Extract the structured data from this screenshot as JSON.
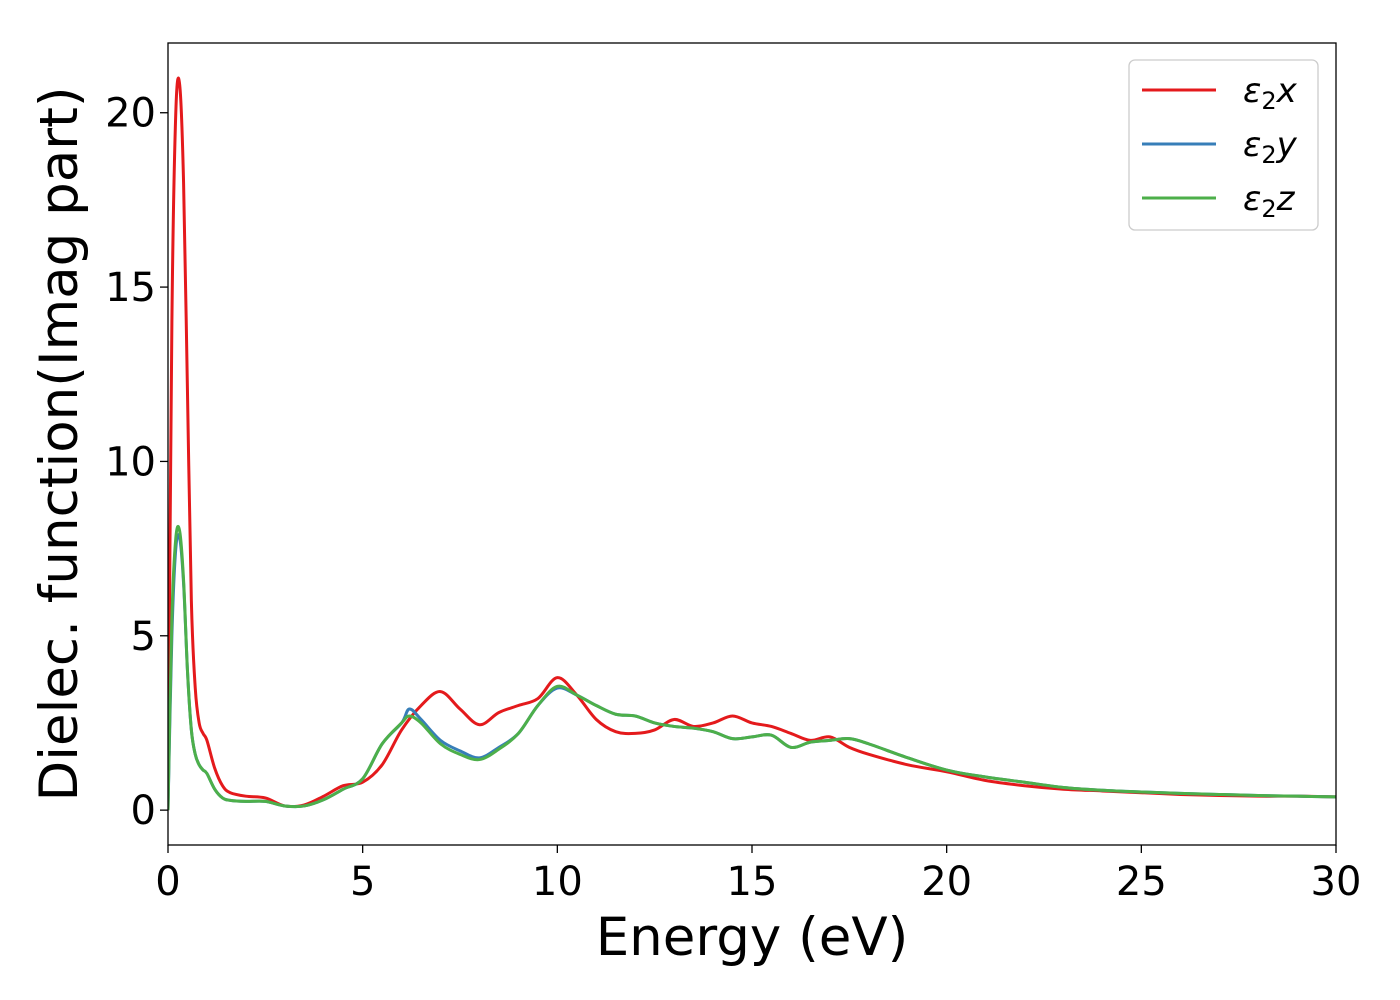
{
  "chart_data": {
    "type": "line",
    "xlabel": "Energy (eV)",
    "ylabel": "Dielec. function(Imag part)",
    "xlim": [
      0,
      30
    ],
    "ylim": [
      -1,
      22
    ],
    "xticks": [
      0,
      5,
      10,
      15,
      20,
      25,
      30
    ],
    "yticks": [
      0,
      5,
      10,
      15,
      20
    ],
    "grid": false,
    "legend_position": "top-right",
    "series": [
      {
        "name": "ε2x",
        "legend": {
          "base": "ε",
          "sub": "2",
          "suffix": "x"
        },
        "color": "#e41a1c",
        "x": [
          0,
          0.1,
          0.2,
          0.3,
          0.4,
          0.5,
          0.6,
          0.7,
          0.8,
          0.9,
          1.0,
          1.2,
          1.4,
          1.6,
          2.0,
          2.5,
          3.0,
          3.5,
          4.0,
          4.5,
          5.0,
          5.5,
          6.0,
          6.5,
          7.0,
          7.5,
          8.0,
          8.5,
          9.0,
          9.5,
          10.0,
          10.5,
          11.0,
          11.5,
          12.0,
          12.5,
          13.0,
          13.5,
          14.0,
          14.5,
          15.0,
          15.5,
          16.0,
          16.5,
          17.0,
          17.5,
          18.0,
          19.0,
          20.0,
          21.0,
          22.0,
          23.0,
          24.0,
          25.0,
          26.0,
          27.0,
          28.0,
          29.0,
          30.0
        ],
        "y": [
          0,
          14.0,
          20.0,
          20.8,
          18.0,
          12.0,
          6.0,
          3.5,
          2.5,
          2.2,
          2.0,
          1.2,
          0.7,
          0.5,
          0.4,
          0.35,
          0.12,
          0.15,
          0.4,
          0.7,
          0.8,
          1.3,
          2.3,
          3.0,
          3.4,
          2.9,
          2.45,
          2.8,
          3.0,
          3.2,
          3.8,
          3.3,
          2.6,
          2.25,
          2.2,
          2.3,
          2.6,
          2.4,
          2.5,
          2.7,
          2.5,
          2.4,
          2.2,
          2.0,
          2.1,
          1.8,
          1.6,
          1.3,
          1.1,
          0.85,
          0.7,
          0.6,
          0.55,
          0.5,
          0.45,
          0.42,
          0.4,
          0.4,
          0.38
        ]
      },
      {
        "name": "ε2y",
        "legend": {
          "base": "ε",
          "sub": "2",
          "suffix": "y"
        },
        "color": "#377eb8",
        "x": [
          0,
          0.1,
          0.2,
          0.3,
          0.4,
          0.5,
          0.6,
          0.7,
          0.8,
          0.9,
          1.0,
          1.2,
          1.4,
          1.6,
          2.0,
          2.5,
          3.0,
          3.5,
          4.0,
          4.5,
          5.0,
          5.5,
          6.0,
          6.2,
          6.5,
          7.0,
          7.5,
          8.0,
          8.5,
          9.0,
          9.5,
          10.0,
          10.5,
          11.0,
          11.5,
          12.0,
          12.5,
          13.0,
          13.5,
          14.0,
          14.5,
          15.0,
          15.5,
          16.0,
          16.5,
          17.0,
          17.5,
          18.0,
          19.0,
          20.0,
          21.0,
          22.0,
          23.0,
          24.0,
          25.0,
          26.0,
          27.0,
          28.0,
          29.0,
          30.0
        ],
        "y": [
          0,
          5.0,
          7.5,
          7.8,
          6.5,
          4.0,
          2.3,
          1.6,
          1.3,
          1.15,
          1.05,
          0.6,
          0.35,
          0.28,
          0.25,
          0.25,
          0.12,
          0.12,
          0.3,
          0.6,
          0.9,
          1.9,
          2.5,
          2.9,
          2.6,
          2.0,
          1.7,
          1.5,
          1.8,
          2.2,
          3.0,
          3.5,
          3.3,
          3.0,
          2.75,
          2.7,
          2.5,
          2.4,
          2.35,
          2.25,
          2.05,
          2.1,
          2.15,
          1.8,
          1.95,
          2.0,
          2.05,
          1.9,
          1.5,
          1.15,
          0.95,
          0.8,
          0.65,
          0.57,
          0.52,
          0.48,
          0.45,
          0.42,
          0.4,
          0.38
        ]
      },
      {
        "name": "ε2z",
        "legend": {
          "base": "ε",
          "sub": "2",
          "suffix": "z"
        },
        "color": "#4daf4a",
        "x": [
          0,
          0.1,
          0.2,
          0.3,
          0.4,
          0.5,
          0.6,
          0.7,
          0.8,
          0.9,
          1.0,
          1.2,
          1.4,
          1.6,
          2.0,
          2.5,
          3.0,
          3.5,
          4.0,
          4.5,
          5.0,
          5.5,
          6.0,
          6.2,
          6.5,
          7.0,
          7.5,
          8.0,
          8.5,
          9.0,
          9.5,
          10.0,
          10.5,
          11.0,
          11.5,
          12.0,
          12.5,
          13.0,
          13.5,
          14.0,
          14.5,
          15.0,
          15.5,
          16.0,
          16.5,
          17.0,
          17.5,
          18.0,
          19.0,
          20.0,
          21.0,
          22.0,
          23.0,
          24.0,
          25.0,
          26.0,
          27.0,
          28.0,
          29.0,
          30.0
        ],
        "y": [
          0,
          5.5,
          7.8,
          8.0,
          6.6,
          4.0,
          2.3,
          1.6,
          1.3,
          1.15,
          1.05,
          0.6,
          0.35,
          0.28,
          0.25,
          0.25,
          0.12,
          0.12,
          0.3,
          0.6,
          0.9,
          1.9,
          2.5,
          2.7,
          2.5,
          1.9,
          1.6,
          1.45,
          1.75,
          2.2,
          3.0,
          3.55,
          3.3,
          3.0,
          2.75,
          2.7,
          2.5,
          2.4,
          2.35,
          2.25,
          2.05,
          2.1,
          2.15,
          1.8,
          1.95,
          2.0,
          2.05,
          1.9,
          1.5,
          1.15,
          0.95,
          0.8,
          0.65,
          0.57,
          0.52,
          0.48,
          0.45,
          0.42,
          0.4,
          0.38
        ]
      }
    ]
  }
}
